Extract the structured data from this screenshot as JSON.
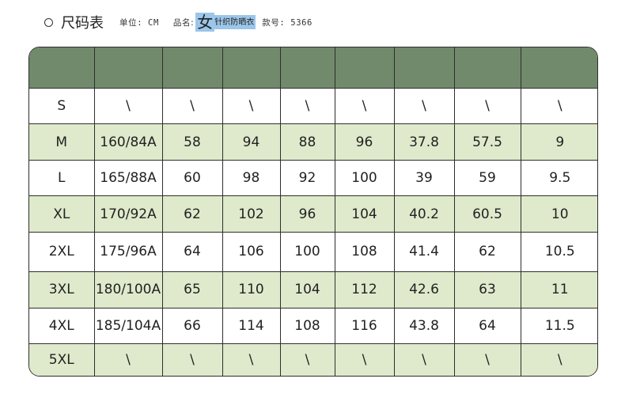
{
  "header": {
    "title": "尺码表",
    "unit_label": "单位: CM",
    "product_label": "品名:",
    "product_big": "女",
    "product_small": "针织防晒衣",
    "style_label": "款号: 5366"
  },
  "table": {
    "header_cells": [
      "",
      "",
      "",
      "",
      "",
      "",
      "",
      "",
      ""
    ],
    "rows": [
      [
        "S",
        "\\",
        "\\",
        "\\",
        "\\",
        "\\",
        "\\",
        "\\",
        "\\"
      ],
      [
        "M",
        "160/84A",
        "58",
        "94",
        "88",
        "96",
        "37.8",
        "57.5",
        "9"
      ],
      [
        "L",
        "165/88A",
        "60",
        "98",
        "92",
        "100",
        "39",
        "59",
        "9.5"
      ],
      [
        "XL",
        "170/92A",
        "62",
        "102",
        "96",
        "104",
        "40.2",
        "60.5",
        "10"
      ],
      [
        "2XL",
        "175/96A",
        "64",
        "106",
        "100",
        "108",
        "41.4",
        "62",
        "10.5"
      ],
      [
        "3XL",
        "180/100A",
        "65",
        "110",
        "104",
        "112",
        "42.6",
        "63",
        "11"
      ],
      [
        "4XL",
        "185/104A",
        "66",
        "114",
        "108",
        "116",
        "43.8",
        "64",
        "11.5"
      ],
      [
        "5XL",
        "\\",
        "\\",
        "\\",
        "\\",
        "\\",
        "\\",
        "\\",
        "\\"
      ]
    ]
  },
  "colors": {
    "header_row": "#718a6b",
    "alt_row": "#dfeacc",
    "highlight": "#9cc6ea",
    "border": "#2e2e2e"
  }
}
